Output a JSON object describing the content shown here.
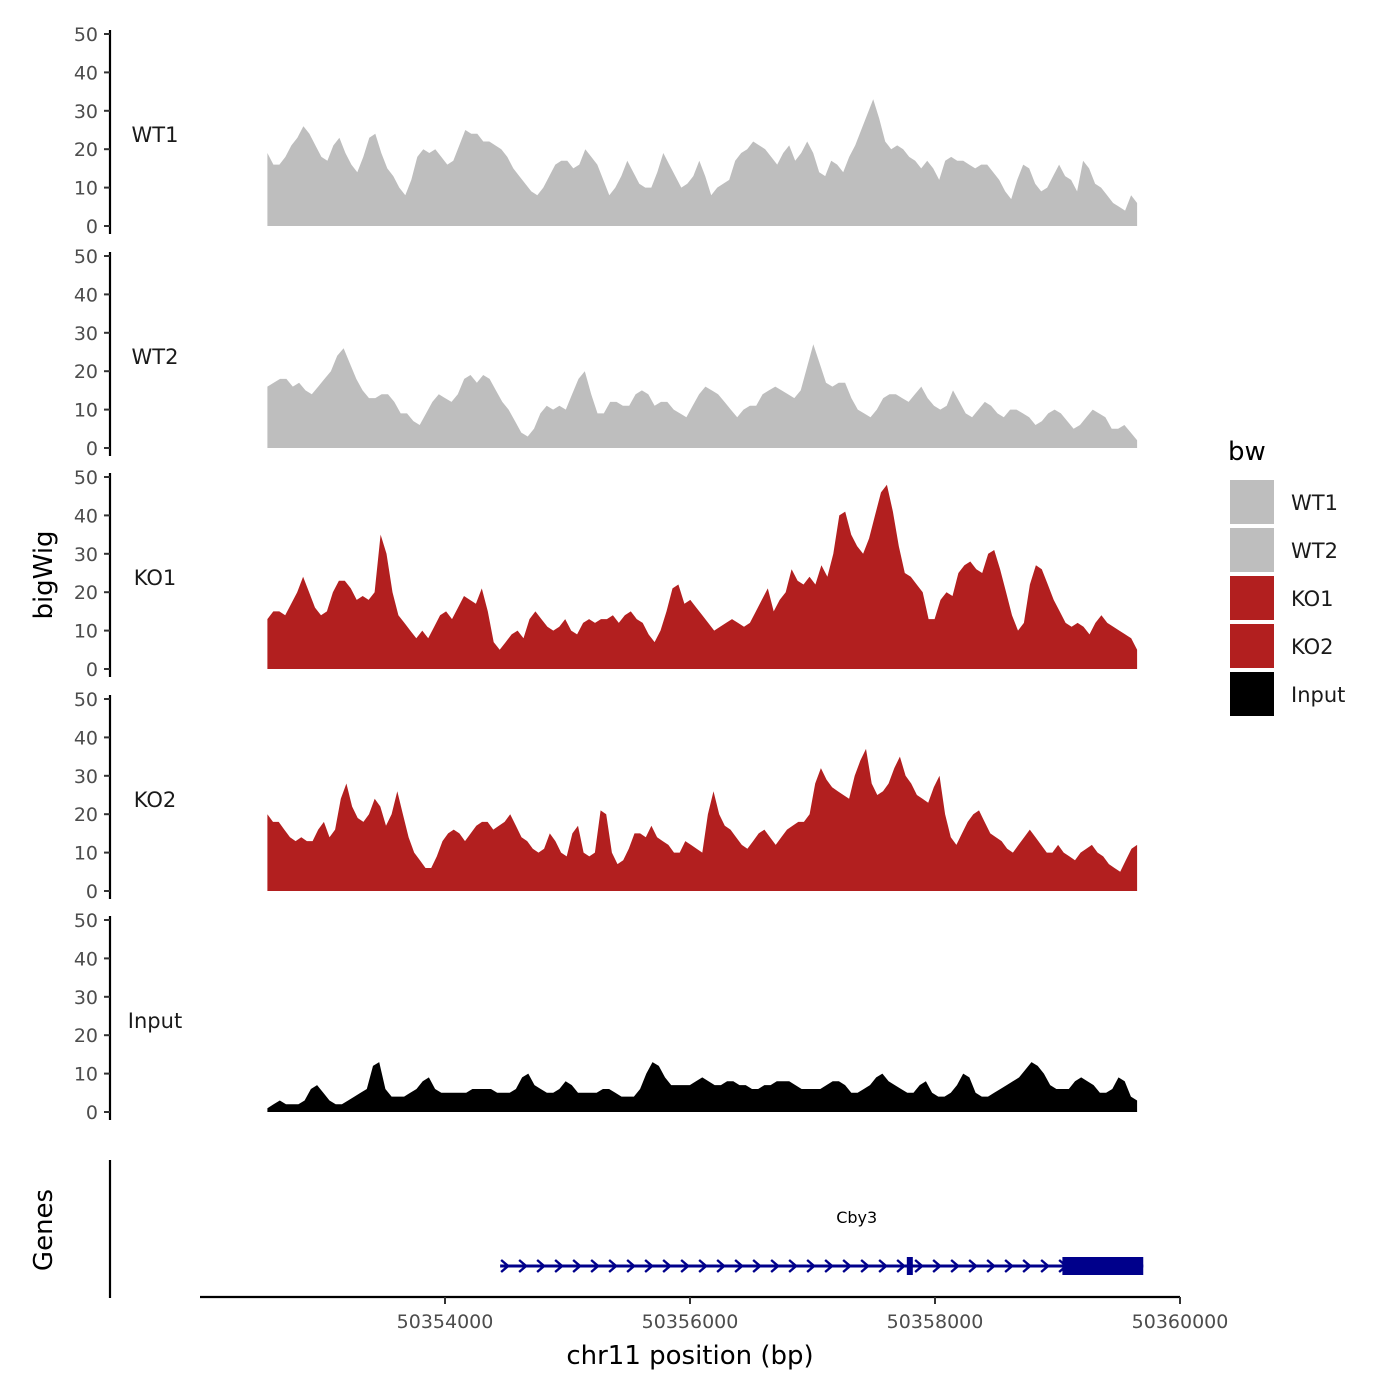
{
  "chart_data": {
    "type": "area",
    "chromosome": "chr11",
    "xlabel": "chr11 position (bp)",
    "ylabel": "bigWig",
    "genes_label": "Genes",
    "xlim": [
      50352000,
      50360000
    ],
    "x_ticks": [
      50354000,
      50356000,
      50358000,
      50360000
    ],
    "x_tick_labels": [
      "50354000",
      "50356000",
      "50358000",
      "50360000"
    ],
    "ylim": [
      0,
      50
    ],
    "y_ticks": [
      0,
      10,
      20,
      30,
      40,
      50
    ],
    "y_tick_labels": [
      "0",
      "10",
      "20",
      "30",
      "40",
      "50"
    ],
    "signal_start": 50352550,
    "signal_end": 50359650,
    "legend": {
      "title": "bw",
      "items": [
        {
          "label": "WT1",
          "color": "#bebebe"
        },
        {
          "label": "WT2",
          "color": "#bebebe"
        },
        {
          "label": "KO1",
          "color": "#b21f1f"
        },
        {
          "label": "KO2",
          "color": "#b21f1f"
        },
        {
          "label": "Input",
          "color": "#000000"
        }
      ]
    },
    "series": [
      {
        "name": "WT1",
        "color": "#bebebe",
        "values": [
          19,
          16,
          16,
          18,
          21,
          23,
          26,
          24,
          21,
          18,
          17,
          21,
          23,
          19,
          16,
          14,
          18,
          23,
          24,
          19,
          15,
          13,
          10,
          8,
          12,
          18,
          20,
          19,
          20,
          18,
          16,
          17,
          21,
          25,
          24,
          24,
          22,
          22,
          21,
          20,
          18,
          15,
          13,
          11,
          9,
          8,
          10,
          13,
          16,
          17,
          17,
          15,
          16,
          20,
          18,
          16,
          12,
          8,
          10,
          13,
          17,
          14,
          11,
          10,
          10,
          14,
          19,
          16,
          13,
          10,
          11,
          13,
          17,
          13,
          8,
          10,
          11,
          12,
          17,
          19,
          20,
          22,
          21,
          20,
          18,
          16,
          19,
          21,
          17,
          19,
          22,
          19,
          14,
          13,
          17,
          16,
          14,
          18,
          21,
          25,
          29,
          33,
          28,
          22,
          20,
          21,
          20,
          18,
          17,
          15,
          17,
          15,
          12,
          17,
          18,
          17,
          17,
          16,
          15,
          16,
          16,
          14,
          12,
          9,
          7,
          12,
          16,
          15,
          11,
          9,
          10,
          13,
          16,
          13,
          12,
          9,
          17,
          15,
          11,
          10,
          8,
          6,
          5,
          4,
          8,
          6
        ]
      },
      {
        "name": "WT2",
        "color": "#bebebe",
        "values": [
          16,
          17,
          18,
          18,
          16,
          17,
          15,
          14,
          16,
          18,
          20,
          24,
          26,
          22,
          18,
          15,
          13,
          13,
          14,
          14,
          12,
          9,
          9,
          7,
          6,
          9,
          12,
          14,
          13,
          12,
          14,
          18,
          19,
          17,
          19,
          18,
          15,
          12,
          10,
          7,
          4,
          3,
          5,
          9,
          11,
          10,
          11,
          10,
          14,
          18,
          20,
          14,
          9,
          9,
          12,
          12,
          11,
          11,
          14,
          15,
          14,
          11,
          12,
          12,
          10,
          9,
          8,
          11,
          14,
          16,
          15,
          14,
          12,
          10,
          8,
          10,
          11,
          11,
          14,
          15,
          16,
          15,
          14,
          13,
          15,
          21,
          27,
          22,
          17,
          16,
          17,
          17,
          13,
          10,
          9,
          8,
          10,
          13,
          14,
          14,
          13,
          12,
          14,
          16,
          13,
          11,
          10,
          11,
          15,
          12,
          9,
          8,
          10,
          12,
          11,
          9,
          8,
          10,
          10,
          9,
          8,
          6,
          7,
          9,
          10,
          9,
          7,
          5,
          6,
          8,
          10,
          9,
          8,
          5,
          5,
          6,
          4,
          2
        ]
      },
      {
        "name": "KO1",
        "color": "#b21f1f",
        "values": [
          13,
          15,
          15,
          14,
          17,
          20,
          24,
          20,
          16,
          14,
          15,
          20,
          23,
          23,
          21,
          18,
          19,
          18,
          20,
          35,
          30,
          20,
          14,
          12,
          10,
          8,
          10,
          8,
          11,
          14,
          15,
          13,
          16,
          19,
          18,
          17,
          21,
          15,
          7,
          5,
          7,
          9,
          10,
          8,
          13,
          15,
          13,
          11,
          10,
          11,
          13,
          10,
          9,
          12,
          13,
          12,
          13,
          13,
          14,
          12,
          14,
          15,
          13,
          12,
          9,
          7,
          10,
          15,
          21,
          22,
          17,
          18,
          16,
          14,
          12,
          10,
          11,
          12,
          13,
          12,
          11,
          12,
          15,
          18,
          21,
          15,
          18,
          20,
          26,
          23,
          22,
          24,
          22,
          27,
          24,
          30,
          40,
          41,
          35,
          32,
          30,
          34,
          40,
          46,
          48,
          41,
          32,
          25,
          24,
          22,
          20,
          13,
          13,
          18,
          20,
          19,
          25,
          27,
          28,
          26,
          25,
          30,
          31,
          26,
          20,
          14,
          10,
          12,
          22,
          27,
          26,
          22,
          18,
          15,
          12,
          11,
          12,
          11,
          9,
          12,
          14,
          12,
          11,
          10,
          9,
          8,
          5
        ]
      },
      {
        "name": "KO2",
        "color": "#b21f1f",
        "values": [
          20,
          18,
          18,
          16,
          14,
          13,
          14,
          13,
          13,
          16,
          18,
          14,
          16,
          24,
          28,
          22,
          19,
          18,
          20,
          24,
          22,
          17,
          20,
          26,
          20,
          14,
          10,
          8,
          6,
          6,
          9,
          13,
          15,
          16,
          15,
          13,
          15,
          17,
          18,
          18,
          16,
          17,
          18,
          20,
          17,
          14,
          13,
          11,
          10,
          11,
          15,
          13,
          10,
          9,
          15,
          17,
          10,
          9,
          10,
          21,
          20,
          10,
          7,
          8,
          11,
          15,
          15,
          14,
          17,
          14,
          13,
          12,
          10,
          10,
          13,
          12,
          11,
          10,
          20,
          26,
          20,
          17,
          16,
          14,
          12,
          11,
          13,
          15,
          16,
          14,
          12,
          14,
          16,
          17,
          18,
          18,
          20,
          28,
          32,
          29,
          27,
          26,
          25,
          24,
          30,
          34,
          37,
          28,
          25,
          26,
          28,
          32,
          35,
          30,
          28,
          25,
          24,
          23,
          27,
          30,
          20,
          14,
          12,
          15,
          18,
          20,
          21,
          18,
          15,
          14,
          13,
          11,
          10,
          12,
          14,
          16,
          14,
          12,
          10,
          10,
          12,
          10,
          9,
          8,
          10,
          11,
          12,
          10,
          9,
          7,
          6,
          5,
          8,
          11,
          12
        ]
      },
      {
        "name": "Input",
        "color": "#000000",
        "values": [
          1,
          2,
          3,
          2,
          2,
          2,
          3,
          6,
          7,
          5,
          3,
          2,
          2,
          3,
          4,
          5,
          6,
          12,
          13,
          6,
          4,
          4,
          4,
          5,
          6,
          8,
          9,
          6,
          5,
          5,
          5,
          5,
          5,
          6,
          6,
          6,
          6,
          5,
          5,
          5,
          6,
          9,
          10,
          7,
          6,
          5,
          5,
          6,
          8,
          7,
          5,
          5,
          5,
          5,
          6,
          6,
          5,
          4,
          4,
          4,
          6,
          10,
          13,
          12,
          9,
          7,
          7,
          7,
          7,
          8,
          9,
          8,
          7,
          7,
          8,
          8,
          7,
          7,
          6,
          6,
          7,
          7,
          8,
          8,
          8,
          7,
          6,
          6,
          6,
          6,
          7,
          8,
          8,
          7,
          5,
          5,
          6,
          7,
          9,
          10,
          8,
          7,
          6,
          5,
          5,
          7,
          8,
          5,
          4,
          4,
          5,
          7,
          10,
          9,
          5,
          4,
          4,
          5,
          6,
          7,
          8,
          9,
          11,
          13,
          12,
          10,
          7,
          6,
          6,
          6,
          8,
          9,
          8,
          7,
          5,
          5,
          6,
          9,
          8,
          4,
          3
        ]
      }
    ],
    "genes": [
      {
        "name": "Cby3",
        "start": 50354450,
        "end": 50359700,
        "strand": "+",
        "color": "#00008b",
        "thick_blocks": [
          [
            50357770,
            50357810
          ],
          [
            50359040,
            50359700
          ]
        ]
      }
    ]
  }
}
